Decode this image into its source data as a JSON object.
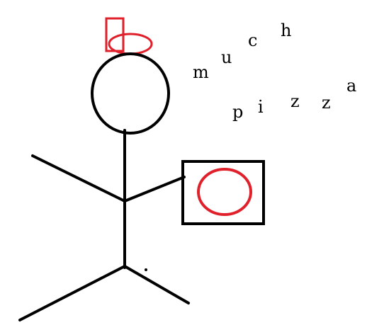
{
  "caption": {
    "word1": [
      "m",
      "u",
      "c",
      "h"
    ],
    "word2": [
      "p",
      "i",
      "z",
      "z",
      "a"
    ]
  },
  "colors": {
    "ink": "#000000",
    "accent": "#e0202a",
    "background": "#ffffff"
  },
  "icons": {
    "hat": "red-hat-icon",
    "pizza": "pizza-box-icon"
  }
}
